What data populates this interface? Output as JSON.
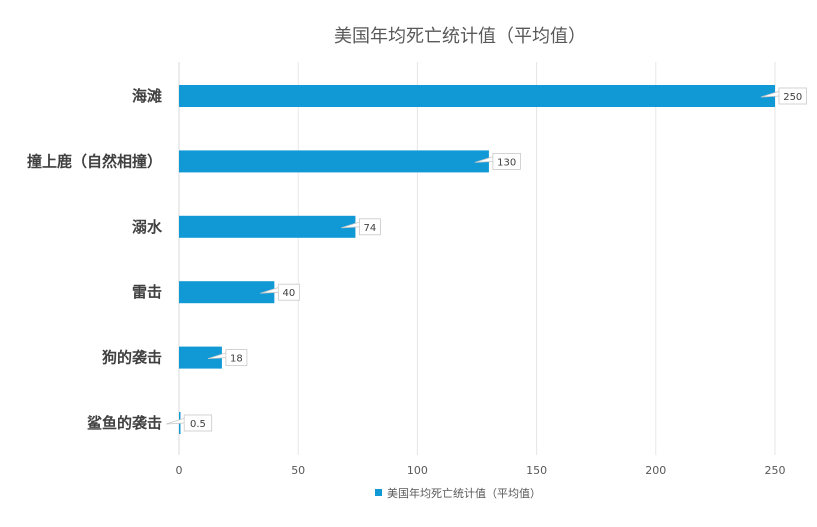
{
  "chart_data": {
    "type": "bar",
    "orientation": "horizontal",
    "title": "美国年均死亡统计值（平均值）",
    "categories": [
      "海滩",
      "撞上鹿（自然相撞）",
      "溺水",
      "雷击",
      "狗的袭击",
      "鲨鱼的袭击"
    ],
    "series": [
      {
        "name": "美国年均死亡统计值（平均值）",
        "values": [
          250,
          130,
          74,
          40,
          18,
          0.5
        ],
        "color": "#1199d6"
      }
    ],
    "data_labels": [
      "250",
      "130",
      "74",
      "40",
      "18",
      "0.5"
    ],
    "xlim": [
      0,
      250
    ],
    "xticks": [
      "0",
      "50",
      "100",
      "150",
      "200",
      "250"
    ],
    "grid": "vertical",
    "legend": "bottom"
  }
}
